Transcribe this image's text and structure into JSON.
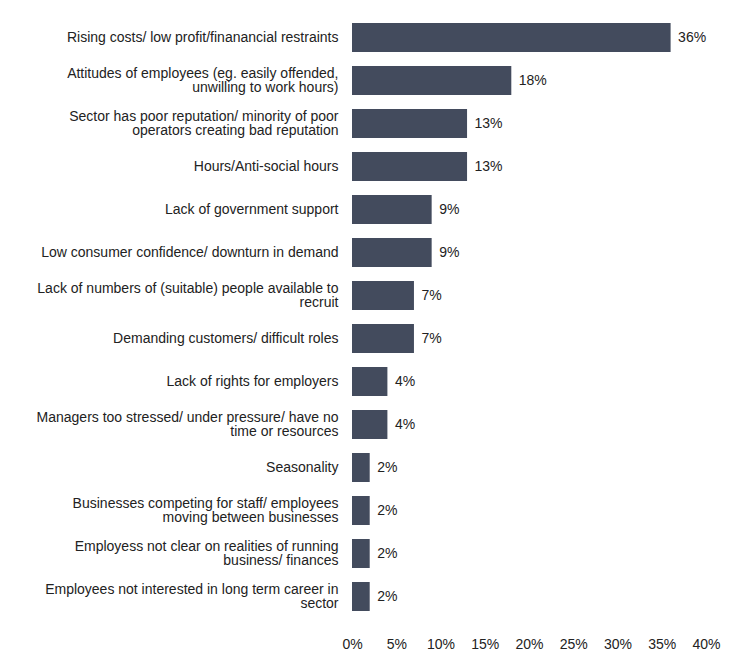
{
  "chart_data": {
    "type": "bar",
    "orientation": "horizontal",
    "categories": [
      "Rising costs/ low profit/finanancial restraints",
      "Attitudes of employees (eg. easily offended, unwilling to work hours)",
      "Sector has poor reputation/ minority of poor operators creating bad reputation",
      "Hours/Anti-social hours",
      "Lack of government support",
      "Low consumer confidence/ downturn in demand",
      "Lack of numbers of (suitable) people available to recruit",
      "Demanding customers/ difficult roles",
      "Lack of rights for employers",
      "Managers too stressed/ under pressure/ have no time or resources",
      "Seasonality",
      "Businesses competing for staff/ employees moving between businesses",
      "Employess not clear on realities of running business/ finances",
      "Employees not interested in long term career in sector"
    ],
    "values": [
      36,
      18,
      13,
      13,
      9,
      9,
      7,
      7,
      4,
      4,
      2,
      2,
      2,
      2
    ],
    "value_labels": [
      "36%",
      "18%",
      "13%",
      "13%",
      "9%",
      "9%",
      "7%",
      "7%",
      "4%",
      "4%",
      "2%",
      "2%",
      "2%",
      "2%"
    ],
    "data_labels": true,
    "color": "#434b5d",
    "xlim": [
      0,
      40
    ],
    "xticks": [
      {
        "value": 0,
        "label": "0%"
      },
      {
        "value": 5,
        "label": "5%"
      },
      {
        "value": 10,
        "label": "10%"
      },
      {
        "value": 15,
        "label": "15%"
      },
      {
        "value": 20,
        "label": "20%"
      },
      {
        "value": 25,
        "label": "25%"
      },
      {
        "value": 30,
        "label": "30%"
      },
      {
        "value": 35,
        "label": "35%"
      },
      {
        "value": 40,
        "label": "40%"
      }
    ],
    "grid": false
  }
}
